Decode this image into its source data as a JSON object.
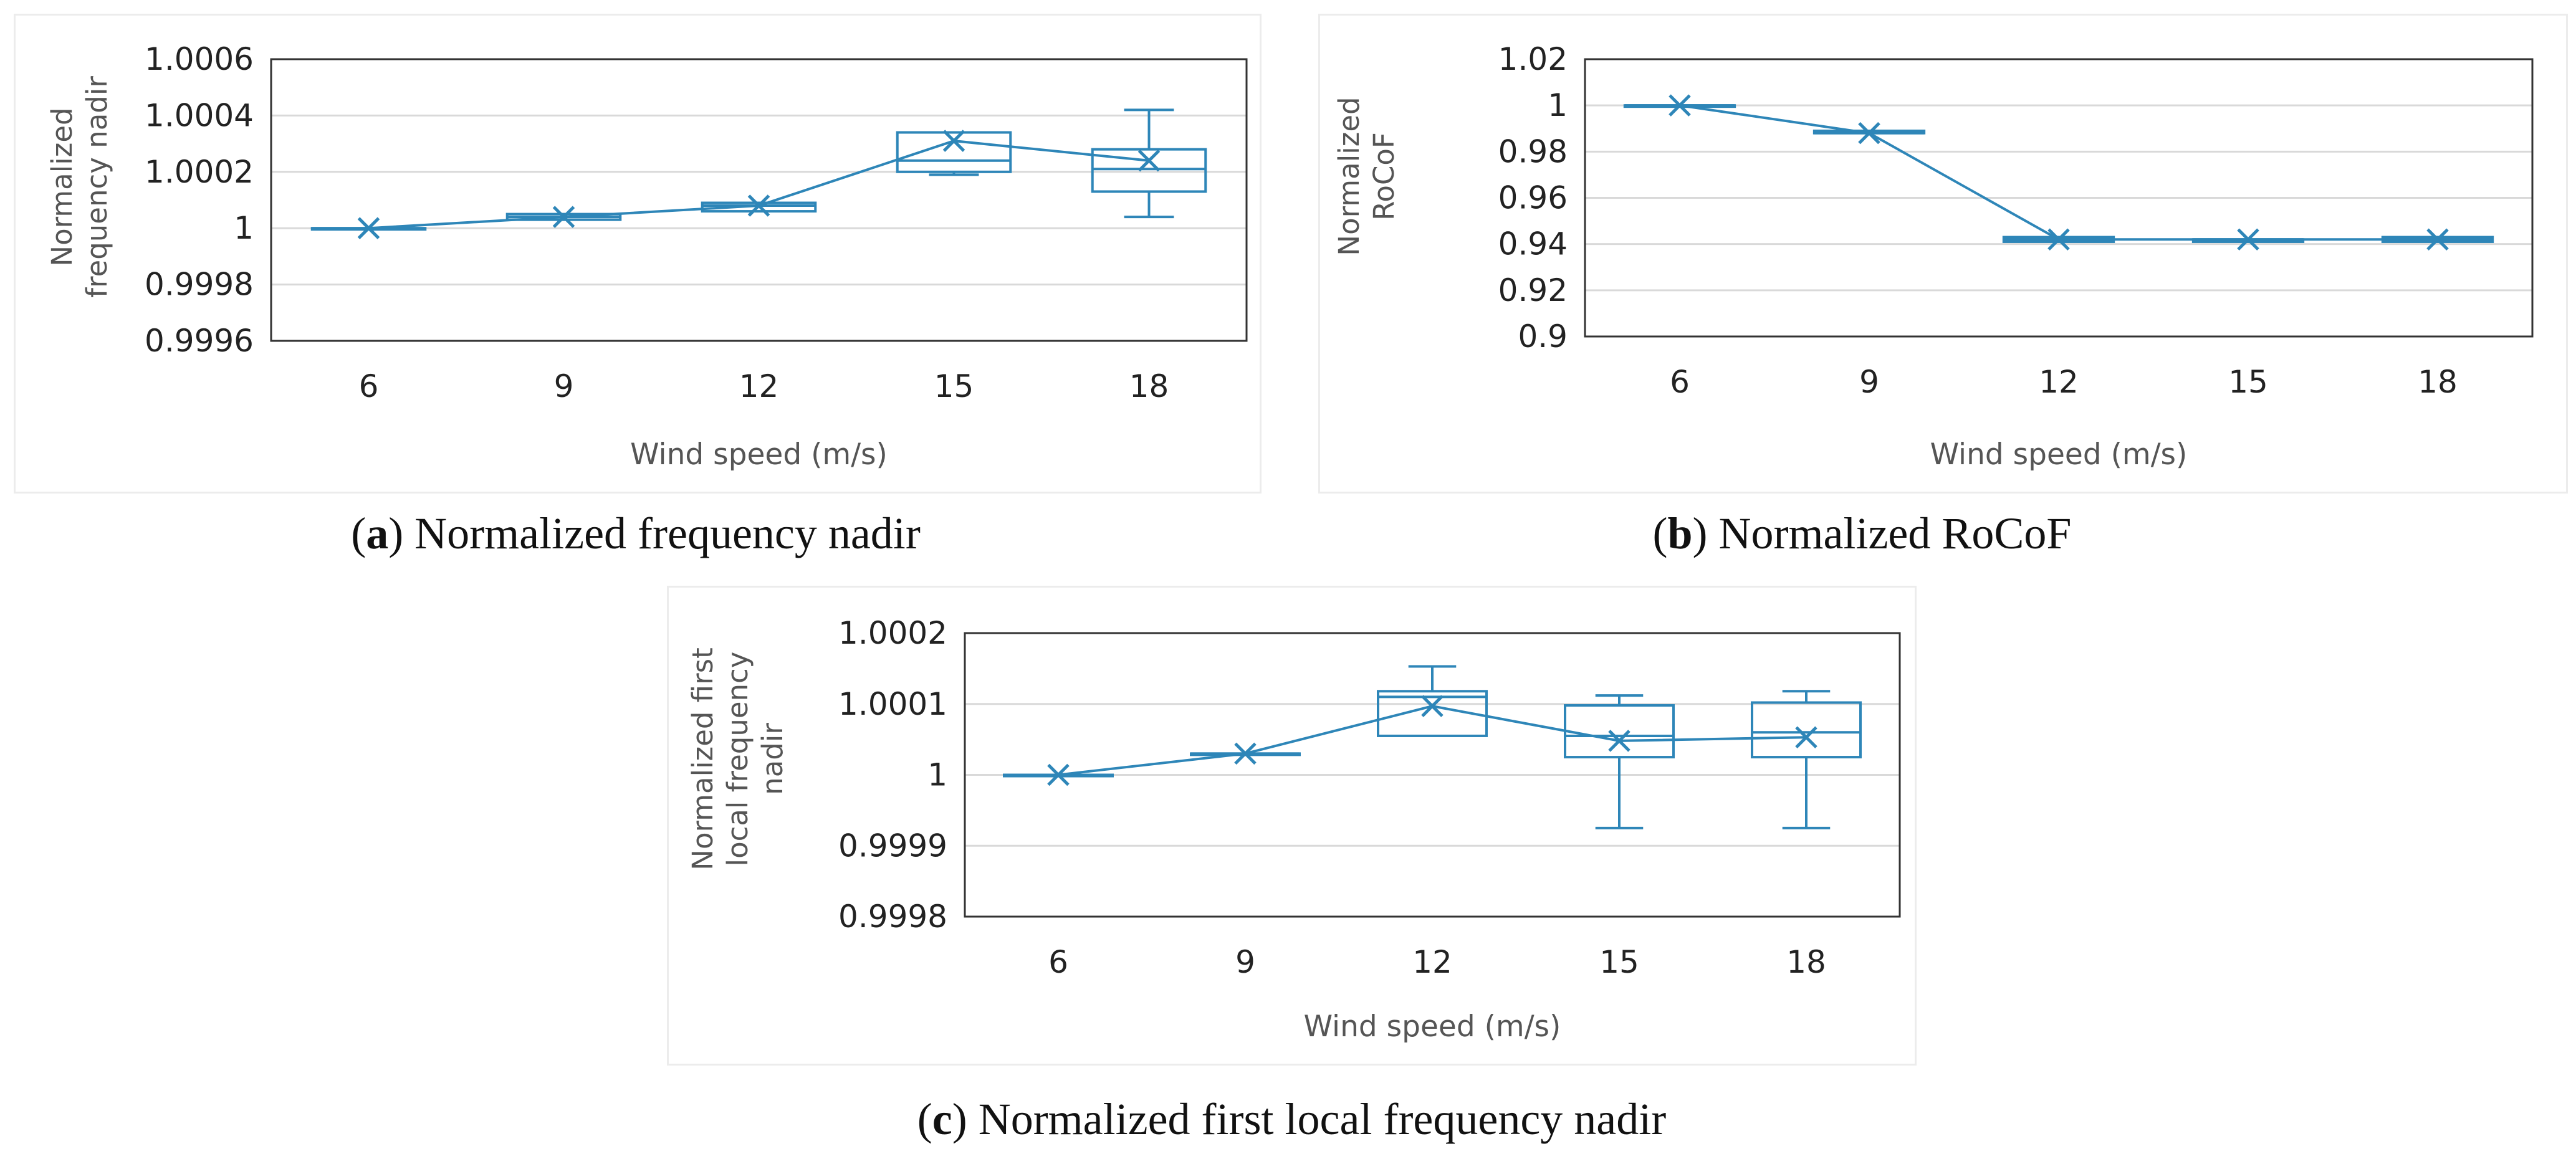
{
  "colors": {
    "accent": "#2e86b8",
    "grid": "#d9d9d9",
    "axis": "#333333"
  },
  "captions": [
    {
      "letter": "a",
      "text": " Normalized frequency nadir"
    },
    {
      "letter": "b",
      "text": " Normalized RoCoF"
    },
    {
      "letter": "c",
      "text": " Normalized first local frequency nadir"
    }
  ],
  "chart_data": [
    {
      "id": "a",
      "type": "box",
      "title": "(a) Normalized frequency nadir",
      "xlabel": "Wind speed (m/s)",
      "ylabel_lines": [
        "Normalized",
        "frequency nadir"
      ],
      "categories": [
        "6",
        "9",
        "12",
        "15",
        "18"
      ],
      "ylim": [
        0.9996,
        1.0006
      ],
      "yticks": [
        0.9996,
        0.9998,
        1,
        1.0002,
        1.0004,
        1.0006
      ],
      "ytick_labels": [
        "0.9996",
        "0.9998",
        "1",
        "1.0002",
        "1.0004",
        "1.0006"
      ],
      "boxes": [
        {
          "min": 1.0,
          "q1": 1.0,
          "median": 1.0,
          "q3": 1.0,
          "max": 1.0,
          "mean": 1.0
        },
        {
          "min": 1.00003,
          "q1": 1.00003,
          "median": 1.00004,
          "q3": 1.00005,
          "max": 1.00005,
          "mean": 1.00004
        },
        {
          "min": 1.00006,
          "q1": 1.00006,
          "median": 1.00008,
          "q3": 1.00009,
          "max": 1.00009,
          "mean": 1.00008
        },
        {
          "min": 1.00019,
          "q1": 1.0002,
          "median": 1.00024,
          "q3": 1.00034,
          "max": 1.00034,
          "mean": 1.00031
        },
        {
          "min": 1.00004,
          "q1": 1.00013,
          "median": 1.00021,
          "q3": 1.00028,
          "max": 1.00042,
          "mean": 1.00024
        }
      ]
    },
    {
      "id": "b",
      "type": "box",
      "title": "(b) Normalized RoCoF",
      "xlabel": "Wind speed (m/s)",
      "ylabel_lines": [
        "Normalized",
        "RoCoF"
      ],
      "categories": [
        "6",
        "9",
        "12",
        "15",
        "18"
      ],
      "ylim": [
        0.9,
        1.02
      ],
      "yticks": [
        0.9,
        0.92,
        0.94,
        0.96,
        0.98,
        1,
        1.02
      ],
      "ytick_labels": [
        "0.9",
        "0.92",
        "0.94",
        "0.96",
        "0.98",
        "1",
        "1.02"
      ],
      "boxes": [
        {
          "min": 1.0,
          "q1": 1.0,
          "median": 1.0,
          "q3": 1.0,
          "max": 1.0,
          "mean": 1.0
        },
        {
          "min": 0.988,
          "q1": 0.988,
          "median": 0.988,
          "q3": 0.989,
          "max": 0.989,
          "mean": 0.988
        },
        {
          "min": 0.941,
          "q1": 0.941,
          "median": 0.942,
          "q3": 0.943,
          "max": 0.943,
          "mean": 0.942
        },
        {
          "min": 0.941,
          "q1": 0.941,
          "median": 0.942,
          "q3": 0.942,
          "max": 0.942,
          "mean": 0.942
        },
        {
          "min": 0.941,
          "q1": 0.941,
          "median": 0.942,
          "q3": 0.943,
          "max": 0.943,
          "mean": 0.942
        }
      ]
    },
    {
      "id": "c",
      "type": "box",
      "title": "(c) Normalized first local frequency nadir",
      "xlabel": "Wind speed (m/s)",
      "ylabel_lines": [
        "Normalized first",
        "local frequency",
        "nadir"
      ],
      "categories": [
        "6",
        "9",
        "12",
        "15",
        "18"
      ],
      "ylim": [
        0.9998,
        1.0002
      ],
      "yticks": [
        0.9998,
        0.9999,
        1,
        1.0001,
        1.0002
      ],
      "ytick_labels": [
        "0.9998",
        "0.9999",
        "1",
        "1.0001",
        "1.0002"
      ],
      "boxes": [
        {
          "min": 1.0,
          "q1": 1.0,
          "median": 1.0,
          "q3": 1.0,
          "max": 1.0,
          "mean": 1.0
        },
        {
          "min": 1.00003,
          "q1": 1.00003,
          "median": 1.00003,
          "q3": 1.00003,
          "max": 1.00003,
          "mean": 1.00003
        },
        {
          "min": 1.000055,
          "q1": 1.000055,
          "median": 1.00011,
          "q3": 1.000118,
          "max": 1.000153,
          "mean": 1.000097
        },
        {
          "min": 0.999925,
          "q1": 1.000025,
          "median": 1.000055,
          "q3": 1.000098,
          "max": 1.000112,
          "mean": 1.000048
        },
        {
          "min": 0.999925,
          "q1": 1.000025,
          "median": 1.00006,
          "q3": 1.000102,
          "max": 1.000118,
          "mean": 1.000053
        }
      ]
    }
  ]
}
